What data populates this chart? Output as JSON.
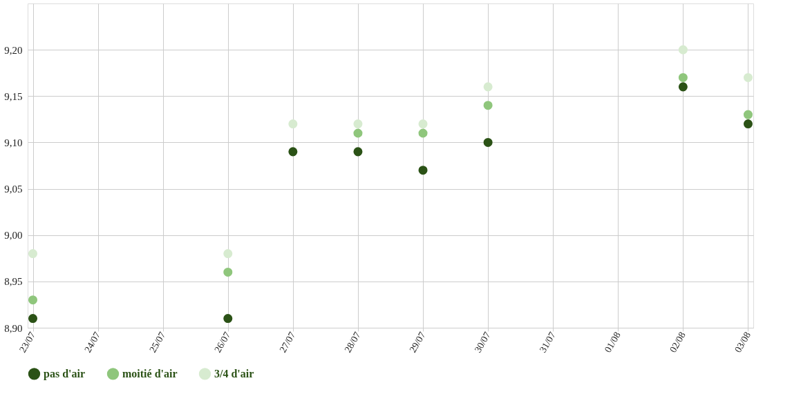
{
  "chart_data": {
    "type": "scatter",
    "categories": [
      "23/07",
      "24/07",
      "25/07",
      "26/07",
      "27/07",
      "28/07",
      "29/07",
      "30/07",
      "31/07",
      "01/08",
      "02/08",
      "03/08"
    ],
    "series": [
      {
        "name": "pas d'air",
        "color": "#2b5216",
        "values": [
          8.91,
          null,
          null,
          8.91,
          9.09,
          9.09,
          9.07,
          9.1,
          null,
          null,
          9.16,
          9.12
        ]
      },
      {
        "name": "moitié d'air",
        "color": "#8fc67c",
        "values": [
          8.93,
          null,
          null,
          8.96,
          null,
          9.11,
          9.11,
          9.14,
          null,
          null,
          9.17,
          9.13
        ]
      },
      {
        "name": "3/4 d'air",
        "color": "#d7ebd0",
        "values": [
          8.98,
          null,
          null,
          8.98,
          9.12,
          9.12,
          9.12,
          9.16,
          null,
          null,
          9.2,
          9.17
        ]
      }
    ],
    "ylim": [
      8.9,
      9.25
    ],
    "yticks": [
      {
        "value": 8.9,
        "label": "8,90"
      },
      {
        "value": 8.95,
        "label": "8,95"
      },
      {
        "value": 9.0,
        "label": "9,00"
      },
      {
        "value": 9.05,
        "label": "9,05"
      },
      {
        "value": 9.1,
        "label": "9,10"
      },
      {
        "value": 9.15,
        "label": "9,15"
      },
      {
        "value": 9.2,
        "label": "9,20"
      }
    ],
    "grid": true,
    "legend": "bottom",
    "marker": "circle"
  }
}
